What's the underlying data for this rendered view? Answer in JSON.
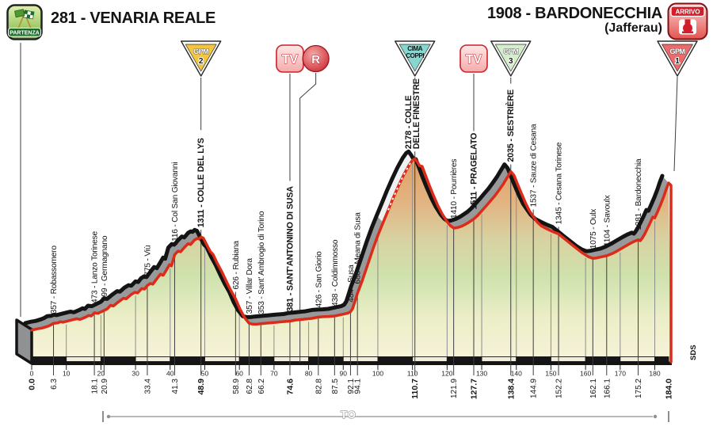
{
  "header": {
    "start": {
      "label": "281 - VENARIA REALE",
      "badge": "PARTENZA"
    },
    "finish": {
      "label": "1908 - BARDONECCHIA",
      "sub": "(Jafferau)",
      "badge": "ARRIVO"
    }
  },
  "footer": {
    "province": "TO",
    "credit": "SDS"
  },
  "colors": {
    "red_line": "#dc2b19",
    "black_line": "#141414",
    "band_gray": "#97999b",
    "band_gravel": "#eef0f2",
    "axis_black": "#141414",
    "bar_cream": "#f3ecd9",
    "waypoint_line": "#3d3d3d",
    "decade_line": "#8d8d8d",
    "gpm2_fill": "#f4c53e",
    "gpm3_fill": "#d4eecb",
    "gpm1_fill": "#ee6a6a",
    "cima_fill": "#87d7d0",
    "tv_fill": "#f9cdce",
    "tv_red": "#cc2128",
    "gradient_low": "#f8f3da",
    "gradient_mid": "#cfe2ad",
    "gradient_high": "#df9f63"
  },
  "chart_data": {
    "type": "area",
    "title": "281 - VENARIA REALE to 1908 - BARDONECCHIA (Jafferau)",
    "x_unit": "km",
    "y_unit": "m",
    "km_max": 184,
    "x_ticks": [
      0,
      10,
      20,
      30,
      40,
      50,
      60,
      70,
      80,
      90,
      100,
      110,
      120,
      130,
      140,
      150,
      160,
      170,
      180
    ],
    "gravel_km": [
      101,
      110.7
    ],
    "profile": [
      [
        0,
        281
      ],
      [
        1.5,
        295
      ],
      [
        3,
        305
      ],
      [
        4.5,
        322
      ],
      [
        5.5,
        338
      ],
      [
        6.3,
        357
      ],
      [
        7.5,
        362
      ],
      [
        8.3,
        374
      ],
      [
        9,
        369
      ],
      [
        10.5,
        384
      ],
      [
        12,
        398
      ],
      [
        13,
        407
      ],
      [
        14,
        400
      ],
      [
        15.5,
        424
      ],
      [
        16.5,
        444
      ],
      [
        17.2,
        438
      ],
      [
        18.1,
        473
      ],
      [
        19.2,
        468
      ],
      [
        20.9,
        499
      ],
      [
        21.8,
        516
      ],
      [
        22.8,
        556
      ],
      [
        23.6,
        548
      ],
      [
        25,
        592
      ],
      [
        26.5,
        634
      ],
      [
        27.3,
        628
      ],
      [
        28.6,
        672
      ],
      [
        29.8,
        700
      ],
      [
        30.6,
        694
      ],
      [
        31.8,
        742
      ],
      [
        32.6,
        735
      ],
      [
        33.4,
        775
      ],
      [
        34.3,
        798
      ],
      [
        35,
        789
      ],
      [
        36.2,
        852
      ],
      [
        37.2,
        900
      ],
      [
        38,
        888
      ],
      [
        39,
        952
      ],
      [
        39.8,
        1005
      ],
      [
        40.4,
        992
      ],
      [
        41.3,
        1116
      ],
      [
        42.3,
        1155
      ],
      [
        43,
        1147
      ],
      [
        44.2,
        1200
      ],
      [
        45.2,
        1238
      ],
      [
        45.9,
        1228
      ],
      [
        47,
        1278
      ],
      [
        47.8,
        1295
      ],
      [
        48.3,
        1290
      ],
      [
        48.9,
        1311
      ],
      [
        49.6,
        1300
      ],
      [
        50.4,
        1238
      ],
      [
        51.6,
        1150
      ],
      [
        52.4,
        1118
      ],
      [
        53.6,
        1020
      ],
      [
        55,
        922
      ],
      [
        56.4,
        808
      ],
      [
        57.6,
        715
      ],
      [
        58.9,
        626
      ],
      [
        60.2,
        512
      ],
      [
        61.5,
        420
      ],
      [
        62.8,
        357
      ],
      [
        63.8,
        348
      ],
      [
        65,
        347
      ],
      [
        66.2,
        353
      ],
      [
        68,
        359
      ],
      [
        70,
        366
      ],
      [
        72.3,
        374
      ],
      [
        74.6,
        381
      ],
      [
        76.2,
        393
      ],
      [
        77.5,
        398
      ],
      [
        79,
        404
      ],
      [
        80.8,
        411
      ],
      [
        82.8,
        426
      ],
      [
        84.3,
        430
      ],
      [
        85.8,
        433
      ],
      [
        87.5,
        438
      ],
      [
        88.8,
        448
      ],
      [
        90,
        458
      ],
      [
        91.2,
        468
      ],
      [
        92.1,
        484
      ],
      [
        92.7,
        520
      ],
      [
        93.3,
        590
      ],
      [
        94.1,
        688
      ],
      [
        95.5,
        830
      ],
      [
        97,
        1000
      ],
      [
        98.5,
        1170
      ],
      [
        100,
        1330
      ],
      [
        101.5,
        1470
      ],
      [
        103,
        1610
      ],
      [
        104.5,
        1750
      ],
      [
        106,
        1880
      ],
      [
        107.5,
        2000
      ],
      [
        109,
        2105
      ],
      [
        110,
        2160
      ],
      [
        110.7,
        2178
      ],
      [
        111.4,
        2140
      ],
      [
        112.1,
        2098
      ],
      [
        112.8,
        2092
      ],
      [
        113.6,
        2010
      ],
      [
        114.8,
        1890
      ],
      [
        116,
        1775
      ],
      [
        117.3,
        1660
      ],
      [
        118.6,
        1565
      ],
      [
        120,
        1480
      ],
      [
        121,
        1435
      ],
      [
        121.9,
        1410
      ],
      [
        123,
        1415
      ],
      [
        124.3,
        1432
      ],
      [
        125.8,
        1462
      ],
      [
        127.7,
        1511
      ],
      [
        128.8,
        1548
      ],
      [
        130,
        1600
      ],
      [
        131.3,
        1655
      ],
      [
        132.5,
        1710
      ],
      [
        133.8,
        1768
      ],
      [
        135,
        1830
      ],
      [
        136.2,
        1895
      ],
      [
        137.3,
        1965
      ],
      [
        138,
        2010
      ],
      [
        138.4,
        2035
      ],
      [
        139.3,
        1995
      ],
      [
        140.3,
        1900
      ],
      [
        141.5,
        1790
      ],
      [
        142.7,
        1685
      ],
      [
        143.8,
        1600
      ],
      [
        144.9,
        1537
      ],
      [
        146,
        1477
      ],
      [
        147.3,
        1432
      ],
      [
        148.8,
        1402
      ],
      [
        150.4,
        1372
      ],
      [
        152.2,
        1345
      ],
      [
        153.8,
        1296
      ],
      [
        155.6,
        1240
      ],
      [
        157.4,
        1186
      ],
      [
        159.2,
        1132
      ],
      [
        160.8,
        1094
      ],
      [
        162.1,
        1075
      ],
      [
        163.2,
        1080
      ],
      [
        164.6,
        1092
      ],
      [
        166.1,
        1104
      ],
      [
        167.6,
        1126
      ],
      [
        169.2,
        1158
      ],
      [
        170.9,
        1196
      ],
      [
        172.6,
        1234
      ],
      [
        174,
        1262
      ],
      [
        175.2,
        1281
      ],
      [
        175.8,
        1270
      ],
      [
        176.3,
        1295
      ],
      [
        177,
        1338
      ],
      [
        177.8,
        1400
      ],
      [
        178.7,
        1470
      ],
      [
        179.4,
        1532
      ],
      [
        180,
        1522
      ],
      [
        180.8,
        1590
      ],
      [
        181.7,
        1672
      ],
      [
        182.6,
        1760
      ],
      [
        183.3,
        1840
      ],
      [
        184,
        1908
      ]
    ],
    "waypoints": [
      {
        "km": 0.0,
        "elev": 281,
        "label": null,
        "km_label": "0.0",
        "bold": true,
        "line": false
      },
      {
        "km": 6.3,
        "elev": 357,
        "label": "357 - Robassomero",
        "km_label": "6.3"
      },
      {
        "km": 18.1,
        "elev": 473,
        "label": "473 - Lanzo Torinese",
        "km_label": "18.1"
      },
      {
        "km": 20.9,
        "elev": 499,
        "label": "499 - Germagnano",
        "km_label": "20.9"
      },
      {
        "km": 33.4,
        "elev": 775,
        "label": "775 - Viù",
        "km_label": "33.4"
      },
      {
        "km": 41.3,
        "elev": 1116,
        "label": "1116 - Col San Giovanni",
        "km_label": "41.3"
      },
      {
        "km": 48.9,
        "elev": 1311,
        "label": "1311 - COLLE DEL LYS",
        "km_label": "48.9",
        "bold": true
      },
      {
        "km": 58.9,
        "elev": 626,
        "label": "626 - Rubiana",
        "km_label": "58.9"
      },
      {
        "km": 62.8,
        "elev": 357,
        "label": "357 - Villar Dora",
        "km_label": "62.8"
      },
      {
        "km": 66.2,
        "elev": 353,
        "label": "353 - Sant' Ambrogio di Torino",
        "km_label": "66.2"
      },
      {
        "km": 74.6,
        "elev": 381,
        "label": "381 - SANT'ANTONINO DI SUSA",
        "km_label": "74.6",
        "bold": true
      },
      {
        "km": 82.8,
        "elev": 426,
        "label": "426 - San Giorio",
        "km_label": "82.8"
      },
      {
        "km": 87.5,
        "elev": 438,
        "label": "438 - Coldimmosso",
        "km_label": "87.5"
      },
      {
        "km": 92.1,
        "elev": 484,
        "label": "484 - Susa",
        "km_label": "92.1"
      },
      {
        "km": 94.1,
        "elev": 688,
        "label": "688 - Meana di Susa",
        "km_label": "94.1"
      },
      {
        "km": 110.7,
        "elev": 2178,
        "label": "2178 - COLLE",
        "label2": "DELLE FINESTRE",
        "km_label": "110.7",
        "bold": true
      },
      {
        "km": 121.9,
        "elev": 1410,
        "label": "1410 - Pourrières",
        "km_label": "121.9"
      },
      {
        "km": 127.7,
        "elev": 1511,
        "label": "1511 - PRAGELATO",
        "km_label": "127.7",
        "bold": true
      },
      {
        "km": 138.4,
        "elev": 2035,
        "label": "2035 - SESTRIÈRE",
        "km_label": "138.4",
        "bold": true
      },
      {
        "km": 144.9,
        "elev": 1537,
        "label": "1537 - Sauze di Cesana",
        "km_label": "144.9"
      },
      {
        "km": 152.2,
        "elev": 1345,
        "label": "1345 - Cesana Torinese",
        "km_label": "152.2"
      },
      {
        "km": 162.1,
        "elev": 1075,
        "label": "1075 - Oulx",
        "km_label": "162.1"
      },
      {
        "km": 166.1,
        "elev": 1104,
        "label": "1104 - Savoulx",
        "km_label": "166.1"
      },
      {
        "km": 175.2,
        "elev": 1281,
        "label": "1281 - Bardonecchia",
        "km_label": "175.2"
      },
      {
        "km": 184.0,
        "elev": 1908,
        "label": null,
        "km_label": "184.0",
        "bold": true,
        "line": false
      }
    ],
    "icons": [
      {
        "id": "gpm-2",
        "kind": "gpm",
        "label": "GPM",
        "rank": "2",
        "km": 48.9,
        "dx": 0,
        "fill": "#f4c53e"
      },
      {
        "id": "tv-1",
        "kind": "tv",
        "label": "TV",
        "km": 74.6,
        "dx": 0
      },
      {
        "id": "refreshment-r",
        "kind": "r",
        "label": "R",
        "km": 77.5,
        "dx": 20,
        "to_profile": true
      },
      {
        "id": "cima-coppi",
        "kind": "cima",
        "label": "CIMA",
        "label2": "COPPI",
        "km": 110.7,
        "dx": 0,
        "fill": "#87d7d0"
      },
      {
        "id": "tv-2",
        "kind": "tv",
        "label": "TV",
        "km": 127.7,
        "dx": 0
      },
      {
        "id": "gpm-3",
        "kind": "gpm",
        "label": "GPM",
        "rank": "3",
        "km": 138.4,
        "dx": 0,
        "fill": "#d4eecb"
      },
      {
        "id": "gpm-1",
        "kind": "gpm",
        "label": "GPM",
        "rank": "1",
        "km": 184,
        "dx": 11,
        "fill": "#ee6a6a",
        "to_profile": true
      }
    ]
  }
}
